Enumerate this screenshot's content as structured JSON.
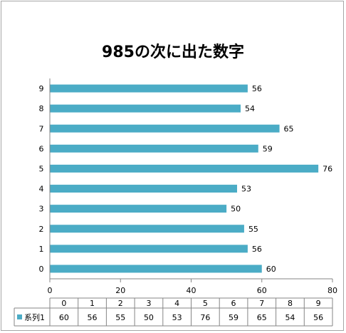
{
  "chart_data": {
    "type": "bar",
    "orientation": "horizontal",
    "title": "985の次に出た数字",
    "categories": [
      "0",
      "1",
      "2",
      "3",
      "4",
      "5",
      "6",
      "7",
      "8",
      "9"
    ],
    "series": [
      {
        "name": "系列1",
        "values": [
          60,
          56,
          55,
          50,
          53,
          76,
          59,
          65,
          54,
          56
        ]
      }
    ],
    "xlim": [
      0,
      80
    ],
    "x_ticks": [
      0,
      20,
      40,
      60,
      80
    ],
    "data_labels": true,
    "data_table": true,
    "grid": false,
    "legend": "data-table",
    "colors": {
      "bar": "#4bacc6",
      "axis": "#868686",
      "table_border": "#868686"
    }
  }
}
